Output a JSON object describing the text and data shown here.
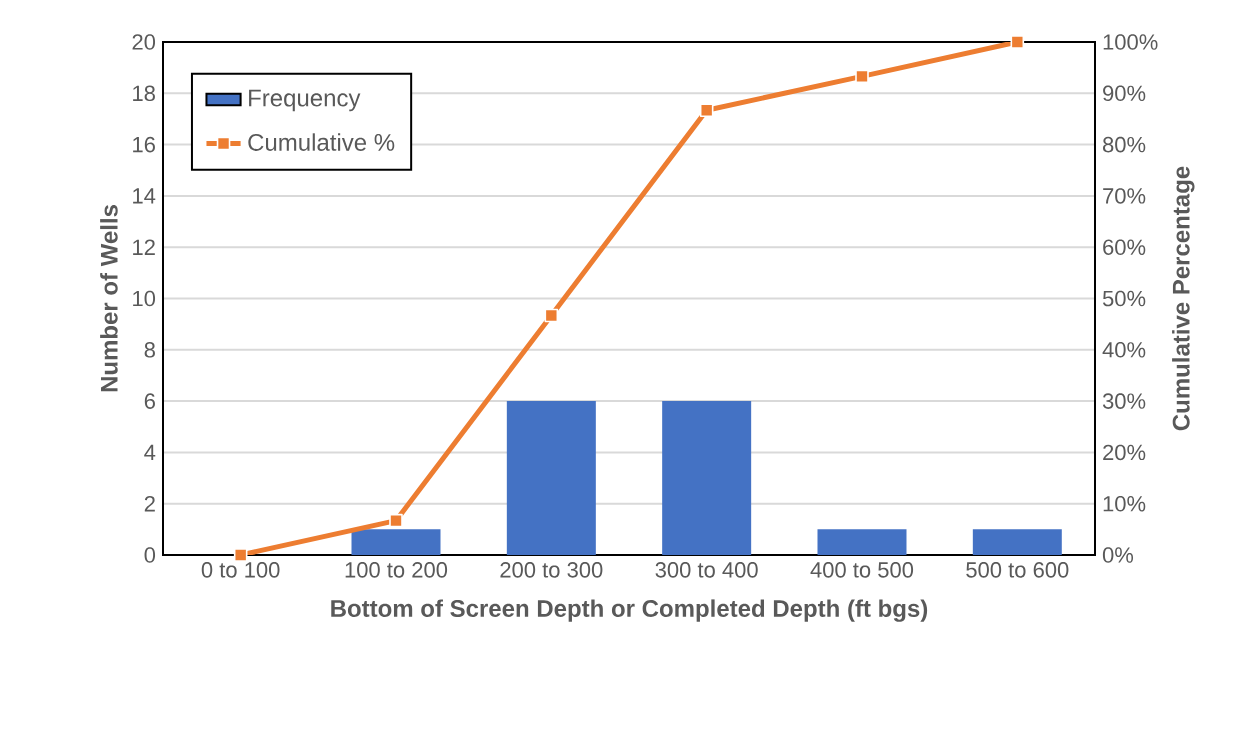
{
  "chart_data": {
    "type": "bar",
    "xlabel": "Bottom of Screen Depth or Completed Depth (ft bgs)",
    "ylabel": "Number of Wells",
    "y2label": "Cumulative Percentage",
    "categories": [
      "0 to 100",
      "100 to 200",
      "200 to 300",
      "300 to 400",
      "400 to 500",
      "500 to 600"
    ],
    "series": [
      {
        "name": "Frequency",
        "color": "#4472c4",
        "values": [
          0,
          1,
          6,
          6,
          1,
          1
        ]
      },
      {
        "name": "Cumulative %",
        "type": "line",
        "axis": "y2",
        "color": "#ed7d31",
        "marker": "square",
        "line_style": "solid",
        "values": [
          0,
          6.7,
          46.7,
          86.7,
          93.3,
          100
        ]
      }
    ],
    "ylim": [
      0,
      20
    ],
    "yticks": [
      0,
      2,
      4,
      6,
      8,
      10,
      12,
      14,
      16,
      18,
      20
    ],
    "y2lim": [
      0,
      100
    ],
    "y2ticks": [
      {
        "value": 0,
        "label": "0%"
      },
      {
        "value": 10,
        "label": "10%"
      },
      {
        "value": 20,
        "label": "20%"
      },
      {
        "value": 30,
        "label": "30%"
      },
      {
        "value": 40,
        "label": "40%"
      },
      {
        "value": 50,
        "label": "50%"
      },
      {
        "value": 60,
        "label": "60%"
      },
      {
        "value": 70,
        "label": "70%"
      },
      {
        "value": 80,
        "label": "80%"
      },
      {
        "value": 90,
        "label": "90%"
      },
      {
        "value": 100,
        "label": "100%"
      }
    ],
    "grid": "y",
    "legend": "top left"
  }
}
